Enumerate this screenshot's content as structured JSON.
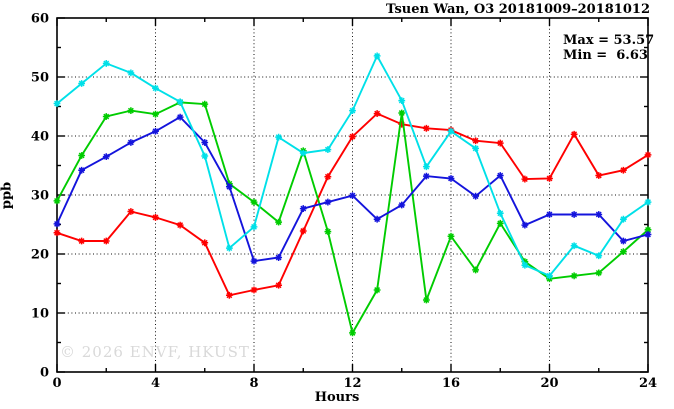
{
  "chart_data": {
    "type": "line",
    "title": "Tsuen Wan, O3 20181009–20181012",
    "xlabel": "Hours",
    "ylabel": "ppb",
    "xlim": [
      0,
      24
    ],
    "ylim": [
      0,
      60
    ],
    "x_major_ticks": [
      0,
      4,
      8,
      12,
      16,
      20,
      24
    ],
    "x_minor_ticks": [
      2,
      6,
      10,
      14,
      18,
      22
    ],
    "y_major_ticks": [
      0,
      10,
      20,
      30,
      40,
      50,
      60
    ],
    "y_minor_ticks": [
      5,
      15,
      25,
      35,
      45,
      55
    ],
    "grid": true,
    "legend_position": "none",
    "annotation": {
      "max_label": "Max = 53.57",
      "min_label": "Min =  6.63"
    },
    "max_value": 53.57,
    "min_value": 6.63,
    "watermark": "© 2026 ENVF, HKUST",
    "x": [
      0,
      1,
      2,
      3,
      4,
      5,
      6,
      7,
      8,
      9,
      10,
      11,
      12,
      13,
      14,
      15,
      16,
      17,
      18,
      19,
      20,
      21,
      22,
      23,
      24
    ],
    "series": [
      {
        "name": "red-series",
        "color": "#ff0000",
        "values": [
          23.6,
          22.2,
          22.2,
          27.2,
          26.2,
          24.9,
          21.9,
          13.0,
          13.9,
          14.7,
          23.9,
          33.1,
          39.9,
          43.8,
          42.0,
          41.3,
          41.0,
          39.2,
          38.8,
          32.7,
          32.8,
          40.3,
          33.3,
          34.2,
          36.8
        ]
      },
      {
        "name": "green-series",
        "color": "#00cc00",
        "values": [
          29.0,
          36.7,
          43.3,
          44.3,
          43.7,
          45.7,
          45.4,
          31.9,
          28.8,
          25.4,
          37.5,
          23.8,
          6.63,
          13.9,
          43.9,
          12.2,
          23.0,
          17.3,
          25.2,
          18.7,
          15.8,
          16.3,
          16.8,
          20.4,
          24.1
        ]
      },
      {
        "name": "blue-series",
        "color": "#1414dc",
        "values": [
          25.1,
          34.2,
          36.5,
          38.9,
          40.8,
          43.2,
          38.9,
          31.4,
          18.8,
          19.4,
          27.7,
          28.8,
          29.9,
          25.9,
          28.3,
          33.2,
          32.8,
          29.8,
          33.3,
          24.9,
          26.7,
          26.7,
          26.7,
          22.2,
          23.3
        ]
      },
      {
        "name": "cyan-series",
        "color": "#00e0e8",
        "values": [
          45.5,
          48.9,
          52.3,
          50.7,
          48.1,
          45.8,
          36.6,
          21.0,
          24.6,
          39.8,
          37.1,
          37.7,
          44.3,
          53.57,
          46.0,
          34.8,
          40.8,
          37.9,
          26.9,
          18.1,
          16.3,
          21.4,
          19.7,
          25.9,
          28.8
        ]
      }
    ]
  }
}
